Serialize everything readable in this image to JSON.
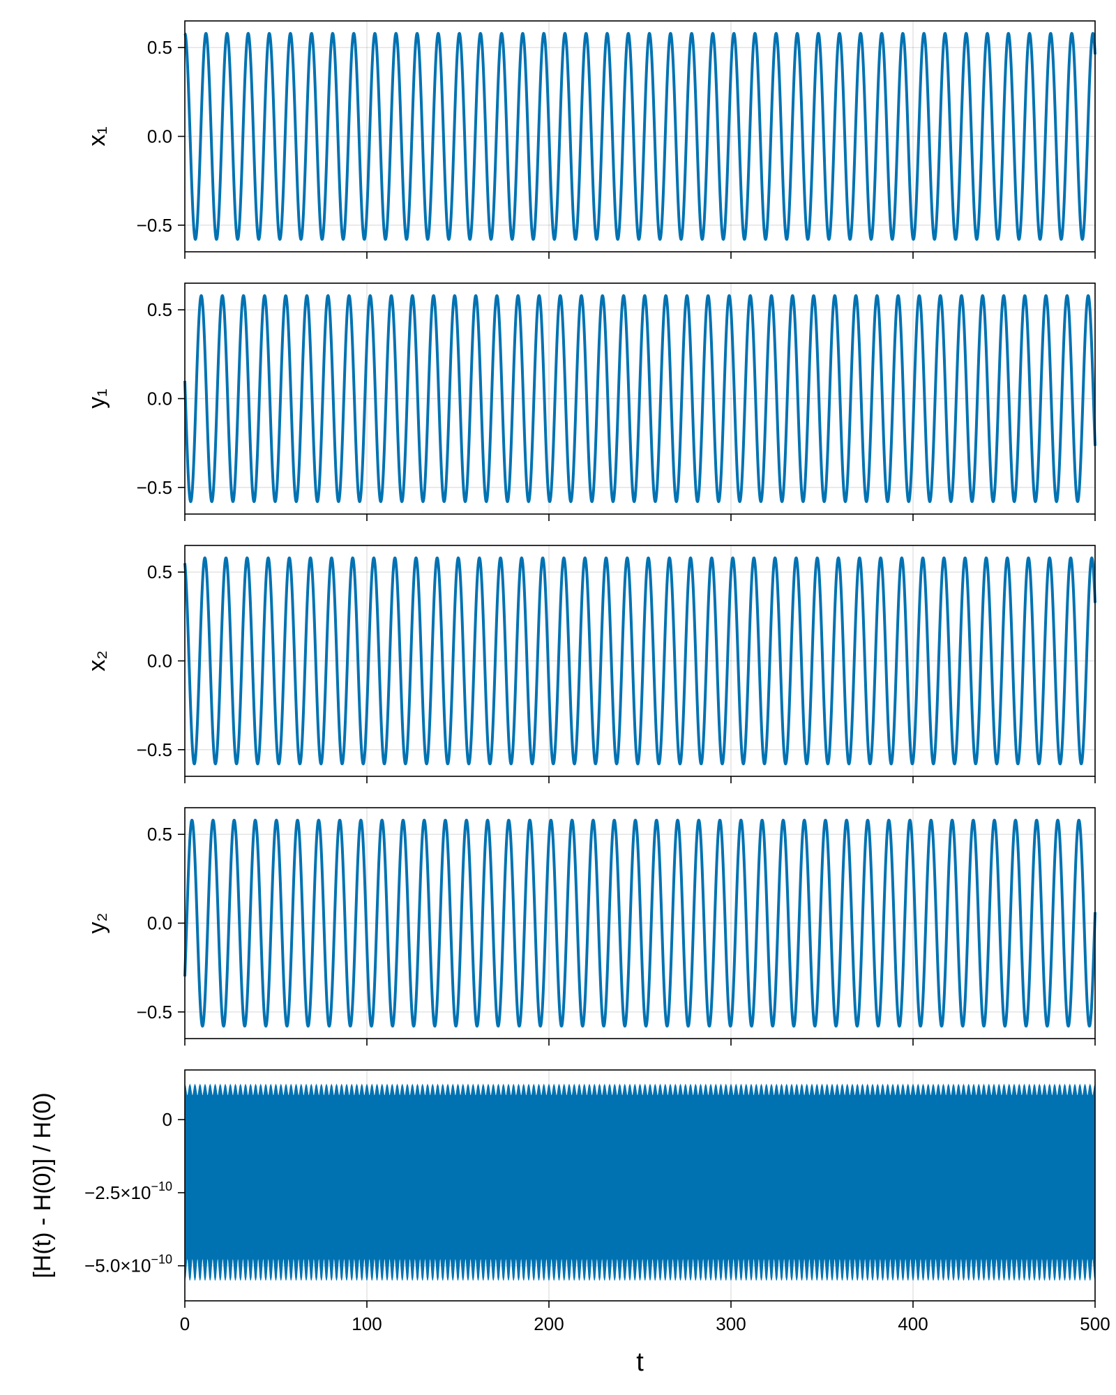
{
  "chart_data": [
    {
      "type": "line",
      "ylabel": "x₁",
      "xlim": [
        0,
        500
      ],
      "ylim": [
        -0.65,
        0.65
      ],
      "yticks": [
        {
          "value": 0.5,
          "label": "0.5"
        },
        {
          "value": 0.0,
          "label": "0.0"
        },
        {
          "value": -0.5,
          "label": "−0.5"
        }
      ],
      "xticks": [
        0,
        100,
        200,
        300,
        400,
        500
      ],
      "show_xtick_labels": false,
      "grid": true,
      "color": "#0072b2",
      "signal": {
        "amplitude": 0.58,
        "period": 11.6,
        "start_value": 0.58,
        "peaks_count": 43
      }
    },
    {
      "type": "line",
      "ylabel": "y₁",
      "xlim": [
        0,
        500
      ],
      "ylim": [
        -0.65,
        0.65
      ],
      "yticks": [
        {
          "value": 0.5,
          "label": "0.5"
        },
        {
          "value": 0.0,
          "label": "0.0"
        },
        {
          "value": -0.5,
          "label": "−0.5"
        }
      ],
      "xticks": [
        0,
        100,
        200,
        300,
        400,
        500
      ],
      "show_xtick_labels": false,
      "grid": true,
      "color": "#0072b2",
      "signal": {
        "amplitude": 0.58,
        "period": 11.6,
        "start_value": 0.1,
        "peaks_count": 43
      }
    },
    {
      "type": "line",
      "ylabel": "x₂",
      "xlim": [
        0,
        500
      ],
      "ylim": [
        -0.65,
        0.65
      ],
      "yticks": [
        {
          "value": 0.5,
          "label": "0.5"
        },
        {
          "value": 0.0,
          "label": "0.0"
        },
        {
          "value": -0.5,
          "label": "−0.5"
        }
      ],
      "xticks": [
        0,
        100,
        200,
        300,
        400,
        500
      ],
      "show_xtick_labels": false,
      "grid": true,
      "color": "#0072b2",
      "signal": {
        "amplitude": 0.58,
        "period": 11.6,
        "start_value": 0.55,
        "peaks_count": 43
      }
    },
    {
      "type": "line",
      "ylabel": "y₂",
      "xlim": [
        0,
        500
      ],
      "ylim": [
        -0.65,
        0.65
      ],
      "yticks": [
        {
          "value": 0.5,
          "label": "0.5"
        },
        {
          "value": 0.0,
          "label": "0.0"
        },
        {
          "value": -0.5,
          "label": "−0.5"
        }
      ],
      "xticks": [
        0,
        100,
        200,
        300,
        400,
        500
      ],
      "show_xtick_labels": false,
      "grid": true,
      "color": "#0072b2",
      "signal": {
        "amplitude": 0.58,
        "period": 11.6,
        "start_value": -0.3,
        "peaks_count": 43
      }
    },
    {
      "type": "area",
      "ylabel": "[H(t) - H(0)] / H(0)",
      "xlabel": "t",
      "xlim": [
        0,
        500
      ],
      "ylim": [
        -6.2e-10,
        1.7e-10
      ],
      "yticks": [
        {
          "value": 0,
          "label": "0"
        },
        {
          "value": -2.5e-10,
          "label": "−2.5×10",
          "exp": "−10"
        },
        {
          "value": -5e-10,
          "label": "−5.0×10",
          "exp": "−10"
        }
      ],
      "xticks": [
        0,
        100,
        200,
        300,
        400,
        500
      ],
      "xtick_labels": [
        "0",
        "100",
        "200",
        "300",
        "400",
        "500"
      ],
      "show_xtick_labels": true,
      "grid": true,
      "color": "#0072b2",
      "band": {
        "upper": 1.2e-10,
        "lower": -5.5e-10,
        "upper_ripple": 4e-11,
        "lower_ripple": 8e-11,
        "cycles": 180
      }
    }
  ]
}
